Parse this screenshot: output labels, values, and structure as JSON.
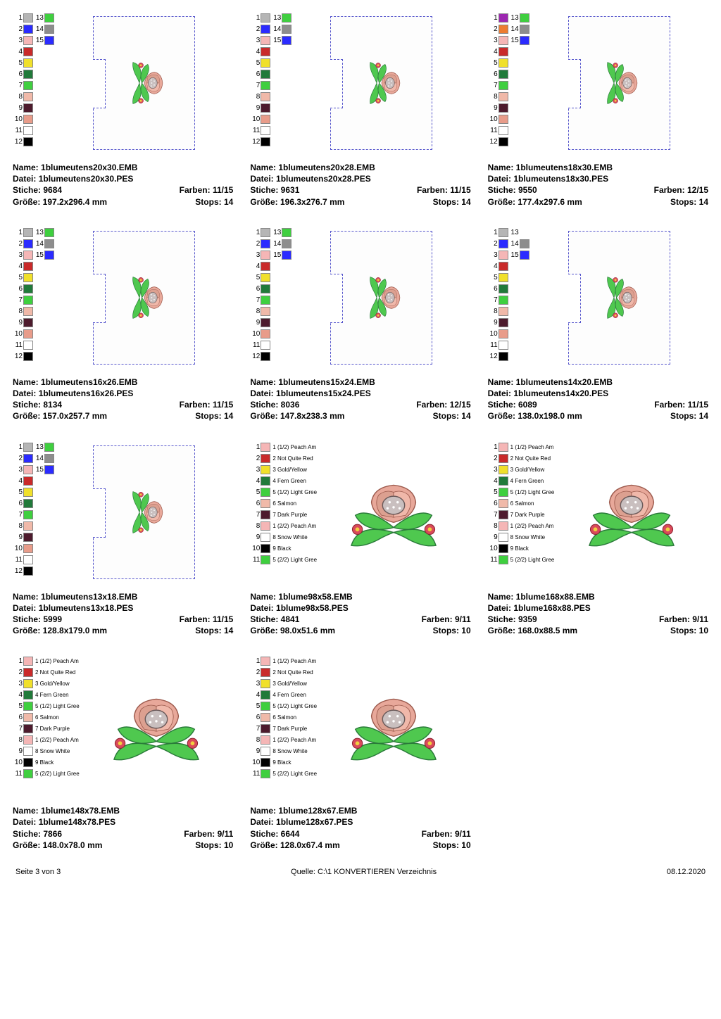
{
  "legends": {
    "A": [
      {
        "n": "1",
        "c": "#b5b5b5",
        "n2": "13",
        "c2": "#3fcf3f"
      },
      {
        "n": "2",
        "c": "#2b2bff",
        "n2": "14",
        "c2": "#8d8d8d"
      },
      {
        "n": "3",
        "c": "#f5b6b6",
        "n2": "15",
        "c2": "#2b2bff"
      },
      {
        "n": "4",
        "c": "#c92a2a"
      },
      {
        "n": "5",
        "c": "#f0e02b"
      },
      {
        "n": "6",
        "c": "#217a3a"
      },
      {
        "n": "7",
        "c": "#3fcf3f"
      },
      {
        "n": "8",
        "c": "#f0b9a9"
      },
      {
        "n": "9",
        "c": "#4d1b2d"
      },
      {
        "n": "10",
        "c": "#e89c8a"
      },
      {
        "n": "11",
        "c": "#ffffff"
      },
      {
        "n": "12",
        "c": "#000000"
      }
    ],
    "B": [
      {
        "n": "1",
        "c": "#9c27b0",
        "n2": "13",
        "c2": "#3fcf3f"
      },
      {
        "n": "2",
        "c": "#ed7d31",
        "n2": "14",
        "c2": "#8d8d8d"
      },
      {
        "n": "3",
        "c": "#f5b6b6",
        "n2": "15",
        "c2": "#2b2bff"
      },
      {
        "n": "4",
        "c": "#c92a2a"
      },
      {
        "n": "5",
        "c": "#f0e02b"
      },
      {
        "n": "6",
        "c": "#217a3a"
      },
      {
        "n": "7",
        "c": "#3fcf3f"
      },
      {
        "n": "8",
        "c": "#f0b9a9"
      },
      {
        "n": "9",
        "c": "#4d1b2d"
      },
      {
        "n": "10",
        "c": "#e89c8a"
      },
      {
        "n": "11",
        "c": "#ffffff"
      },
      {
        "n": "12",
        "c": "#000000"
      }
    ],
    "C": [
      {
        "n": "1",
        "c": "#b5b5b5",
        "n2": "13",
        "c2": ""
      },
      {
        "n": "2",
        "c": "#2b2bff",
        "n2": "14",
        "c2": "#8d8d8d"
      },
      {
        "n": "3",
        "c": "#f5b6b6",
        "n2": "15",
        "c2": "#2b2bff"
      },
      {
        "n": "4",
        "c": "#c92a2a"
      },
      {
        "n": "5",
        "c": "#f0e02b"
      },
      {
        "n": "6",
        "c": "#217a3a"
      },
      {
        "n": "7",
        "c": "#3fcf3f"
      },
      {
        "n": "8",
        "c": "#f0b9a9"
      },
      {
        "n": "9",
        "c": "#4d1b2d"
      },
      {
        "n": "10",
        "c": "#e89c8a"
      },
      {
        "n": "11",
        "c": "#ffffff"
      },
      {
        "n": "12",
        "c": "#000000"
      }
    ],
    "D": [
      {
        "n": "1",
        "c": "#f5b6b6",
        "lbl": "1 (1/2) Peach Am"
      },
      {
        "n": "2",
        "c": "#c92a2a",
        "lbl": "2 Not Quite Red"
      },
      {
        "n": "3",
        "c": "#f0e02b",
        "lbl": "3 Gold/Yellow"
      },
      {
        "n": "4",
        "c": "#217a3a",
        "lbl": "4 Fern Green"
      },
      {
        "n": "5",
        "c": "#3fcf3f",
        "lbl": "5 (1/2) Light Gree"
      },
      {
        "n": "6",
        "c": "#f0b9a9",
        "lbl": "6 Salmon"
      },
      {
        "n": "7",
        "c": "#4d1b2d",
        "lbl": "7 Dark Purple"
      },
      {
        "n": "8",
        "c": "#f5b6b6",
        "lbl": "1 (2/2) Peach Am"
      },
      {
        "n": "9",
        "c": "#ffffff",
        "lbl": "8 Snow White"
      },
      {
        "n": "10",
        "c": "#000000",
        "lbl": "9 Black"
      },
      {
        "n": "11",
        "c": "#3fcf3f",
        "lbl": "5 (2/2) Light Gree"
      }
    ]
  },
  "designs": [
    {
      "legend": "A",
      "shape": "env",
      "name": "1blumeutens20x30.EMB",
      "file": "1blumeutens20x30.PES",
      "stitches": "9684",
      "colors": "11/15",
      "size": "197.2x296.4 mm",
      "stops": "14"
    },
    {
      "legend": "A",
      "shape": "env",
      "name": "1blumeutens20x28.EMB",
      "file": "1blumeutens20x28.PES",
      "stitches": "9631",
      "colors": "11/15",
      "size": "196.3x276.7 mm",
      "stops": "14"
    },
    {
      "legend": "B",
      "shape": "env",
      "name": "1blumeutens18x30.EMB",
      "file": "1blumeutens18x30.PES",
      "stitches": "9550",
      "colors": "12/15",
      "size": "177.4x297.6 mm",
      "stops": "14"
    },
    {
      "legend": "A",
      "shape": "env",
      "name": "1blumeutens16x26.EMB",
      "file": "1blumeutens16x26.PES",
      "stitches": "8134",
      "colors": "11/15",
      "size": "157.0x257.7 mm",
      "stops": "14"
    },
    {
      "legend": "A",
      "shape": "env",
      "name": "1blumeutens15x24.EMB",
      "file": "1blumeutens15x24.PES",
      "stitches": "8036",
      "colors": "12/15",
      "size": "147.8x238.3 mm",
      "stops": "14"
    },
    {
      "legend": "C",
      "shape": "env",
      "name": "1blumeutens14x20.EMB",
      "file": "1blumeutens14x20.PES",
      "stitches": "6089",
      "colors": "11/15",
      "size": "138.0x198.0 mm",
      "stops": "14"
    },
    {
      "legend": "A",
      "shape": "env",
      "name": "1blumeutens13x18.EMB",
      "file": "1blumeutens13x18.PES",
      "stitches": "5999",
      "colors": "11/15",
      "size": "128.8x179.0 mm",
      "stops": "14"
    },
    {
      "legend": "D",
      "shape": "flat",
      "name": "1blume98x58.EMB",
      "file": "1blume98x58.PES",
      "stitches": "4841",
      "colors": "9/11",
      "size": "98.0x51.6 mm",
      "stops": "10"
    },
    {
      "legend": "D",
      "shape": "flat",
      "name": "1blume168x88.EMB",
      "file": "1blume168x88.PES",
      "stitches": "9359",
      "colors": "9/11",
      "size": "168.0x88.5 mm",
      "stops": "10"
    },
    {
      "legend": "D",
      "shape": "flat",
      "name": "1blume148x78.EMB",
      "file": "1blume148x78.PES",
      "stitches": "7866",
      "colors": "9/11",
      "size": "148.0x78.0 mm",
      "stops": "10"
    },
    {
      "legend": "D",
      "shape": "flat",
      "name": "1blume128x67.EMB",
      "file": "1blume128x67.PES",
      "stitches": "6644",
      "colors": "9/11",
      "size": "128.0x67.4 mm",
      "stops": "10"
    }
  ],
  "labels": {
    "name": "Name:",
    "file": "Datei:",
    "stitches": "Stiche:",
    "colors": "Farben:",
    "size": "Größe:",
    "stops": "Stops:"
  },
  "footer": {
    "left": "Seite 3 von 3",
    "center": "Quelle: C:\\1 KONVERTIEREN Verzeichnis",
    "right": "08.12.2020"
  },
  "flower_colors": {
    "petal": "#e8a89a",
    "center": "#c9bfbf",
    "leaf": "#4fc84f",
    "leaf_dark": "#2a7a3a",
    "accent": "#d94a5a",
    "accent_center": "#f0d040"
  }
}
